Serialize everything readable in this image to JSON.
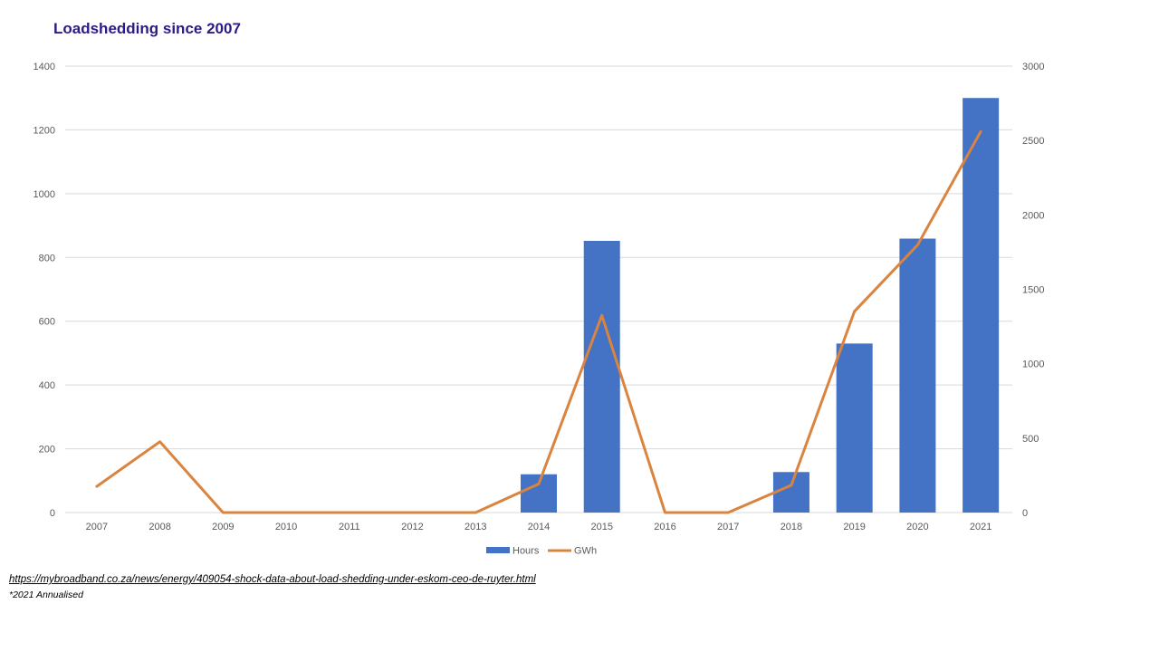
{
  "chart_data": {
    "type": "bar",
    "title": "Loadshedding since 2007",
    "categories": [
      "2007",
      "2008",
      "2009",
      "2010",
      "2011",
      "2012",
      "2013",
      "2014",
      "2015",
      "2016",
      "2017",
      "2018",
      "2019",
      "2020",
      "2021"
    ],
    "series": [
      {
        "name": "Hours",
        "type": "bar",
        "axis": "left",
        "color": "#4472c4",
        "values": [
          0,
          0,
          0,
          0,
          0,
          0,
          0,
          120,
          852,
          0,
          0,
          127,
          530,
          859,
          1300
        ]
      },
      {
        "name": "GWh",
        "type": "line",
        "axis": "right",
        "color": "#d9843f",
        "values": [
          176,
          476,
          0,
          0,
          0,
          0,
          0,
          192,
          1325,
          0,
          0,
          183,
          1352,
          1798,
          2560
        ]
      }
    ],
    "y_left": {
      "min": 0,
      "max": 1400,
      "step": 200,
      "ticks": [
        "0",
        "200",
        "400",
        "600",
        "800",
        "1000",
        "1200",
        "1400"
      ]
    },
    "y_right": {
      "min": 0,
      "max": 3000,
      "step": 500,
      "ticks": [
        "0",
        "500",
        "1000",
        "1500",
        "2000",
        "2500",
        "3000"
      ]
    },
    "grid": true,
    "legend": "bottom"
  },
  "source_url": "https://mybroadband.co.za/news/energy/409054-shock-data-about-load-shedding-under-eskom-ceo-de-ruyter.html",
  "footnote": "*2021 Annualised"
}
